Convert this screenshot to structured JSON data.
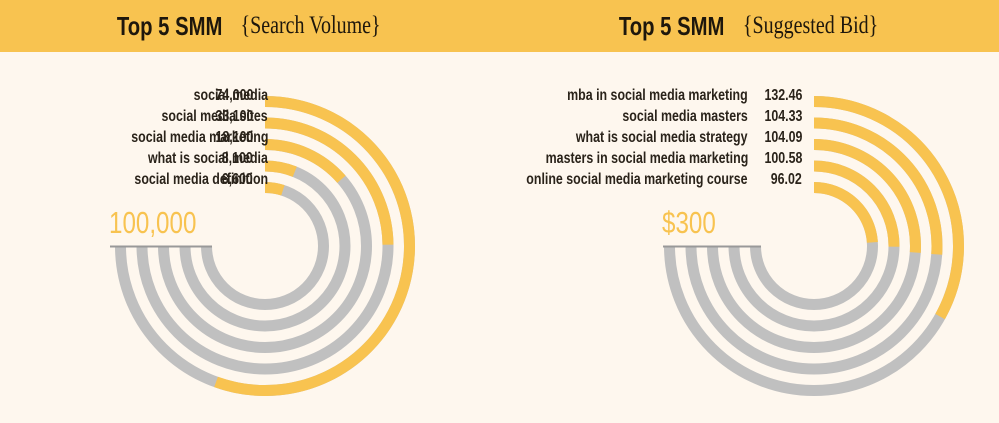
{
  "colors": {
    "header_bg": "#f8c350",
    "background": "#fef7ee",
    "accent": "#f8c350",
    "track": "#c0c0c0",
    "baseline": "#999999",
    "text": "#2a231a"
  },
  "left": {
    "title_bold": "Top 5 SMM",
    "title_light": "{Search Volume}",
    "max_label": "100,000",
    "items": [
      {
        "label": "social media",
        "value": "74,000"
      },
      {
        "label": "social media sites",
        "value": "33,100"
      },
      {
        "label": "social media marketing",
        "value": "18,100"
      },
      {
        "label": "what is social media",
        "value": "8,100"
      },
      {
        "label": "social media definition",
        "value": "6,600"
      }
    ]
  },
  "right": {
    "title_bold": "Top 5 SMM",
    "title_light": "{Suggested Bid}",
    "max_label": "$300",
    "items": [
      {
        "label": "mba in social media marketing",
        "value": "132.46"
      },
      {
        "label": "social media masters",
        "value": "104.33"
      },
      {
        "label": "what is social media strategy",
        "value": "104.09"
      },
      {
        "label": "masters in social media marketing",
        "value": "100.58"
      },
      {
        "label": "online social media marketing course",
        "value": "96.02"
      }
    ]
  },
  "chart_data": [
    {
      "type": "radial-bar",
      "title": "Top 5 SMM {Search Volume}",
      "categories": [
        "social media",
        "social media sites",
        "social media marketing",
        "what is social media",
        "social media definition"
      ],
      "values": [
        74000,
        33100,
        18100,
        8100,
        6600
      ],
      "max": 100000,
      "max_label": "100,000",
      "arc_span_degrees": 270,
      "xlabel": "",
      "ylabel": ""
    },
    {
      "type": "radial-bar",
      "title": "Top 5 SMM {Suggested Bid}",
      "categories": [
        "mba in social media marketing",
        "social media masters",
        "what is social media strategy",
        "masters in social media marketing",
        "online social media marketing course"
      ],
      "values": [
        132.46,
        104.33,
        104.09,
        100.58,
        96.02
      ],
      "max": 300,
      "max_label": "$300",
      "unit": "$",
      "arc_span_degrees": 270,
      "xlabel": "",
      "ylabel": ""
    }
  ]
}
